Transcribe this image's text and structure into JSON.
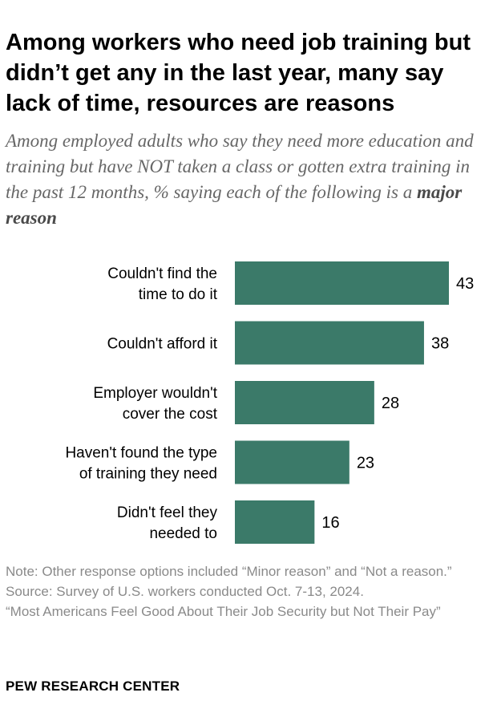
{
  "header": {
    "title": "Among workers who need job training but didn’t get any in the last year, many say lack of time, resources are reasons",
    "subtitle_prefix": "Among employed adults who say they need more education and training but have NOT taken a class or gotten extra training in the past 12 months, % saying each of the following is a ",
    "subtitle_emphasis": "major reason"
  },
  "chart_data": {
    "type": "bar",
    "orientation": "horizontal",
    "categories": [
      [
        "Couldn't find the",
        "time to do it"
      ],
      [
        "Couldn't afford it"
      ],
      [
        "Employer wouldn't",
        "cover the cost"
      ],
      [
        "Haven't found the type",
        "of training they need"
      ],
      [
        "Didn't feel they",
        "needed to"
      ]
    ],
    "values": [
      43,
      38,
      28,
      23,
      16
    ],
    "value_labels": [
      "43",
      "38",
      "28",
      "23",
      "16"
    ],
    "xlim": [
      0,
      50
    ],
    "bar_color": "#3b7a69",
    "title": "Among workers who need job training but didn’t get any in the last year, many say lack of time, resources are reasons",
    "xlabel": "",
    "ylabel": ""
  },
  "notes": {
    "note": "Note: Other response options included “Minor reason” and “Not a reason.”",
    "source": "Source: Survey of U.S. workers conducted Oct. 7-13, 2024.",
    "report": "“Most Americans Feel Good About Their Job Security but Not Their Pay”"
  },
  "footer": {
    "brand": "PEW RESEARCH CENTER"
  }
}
